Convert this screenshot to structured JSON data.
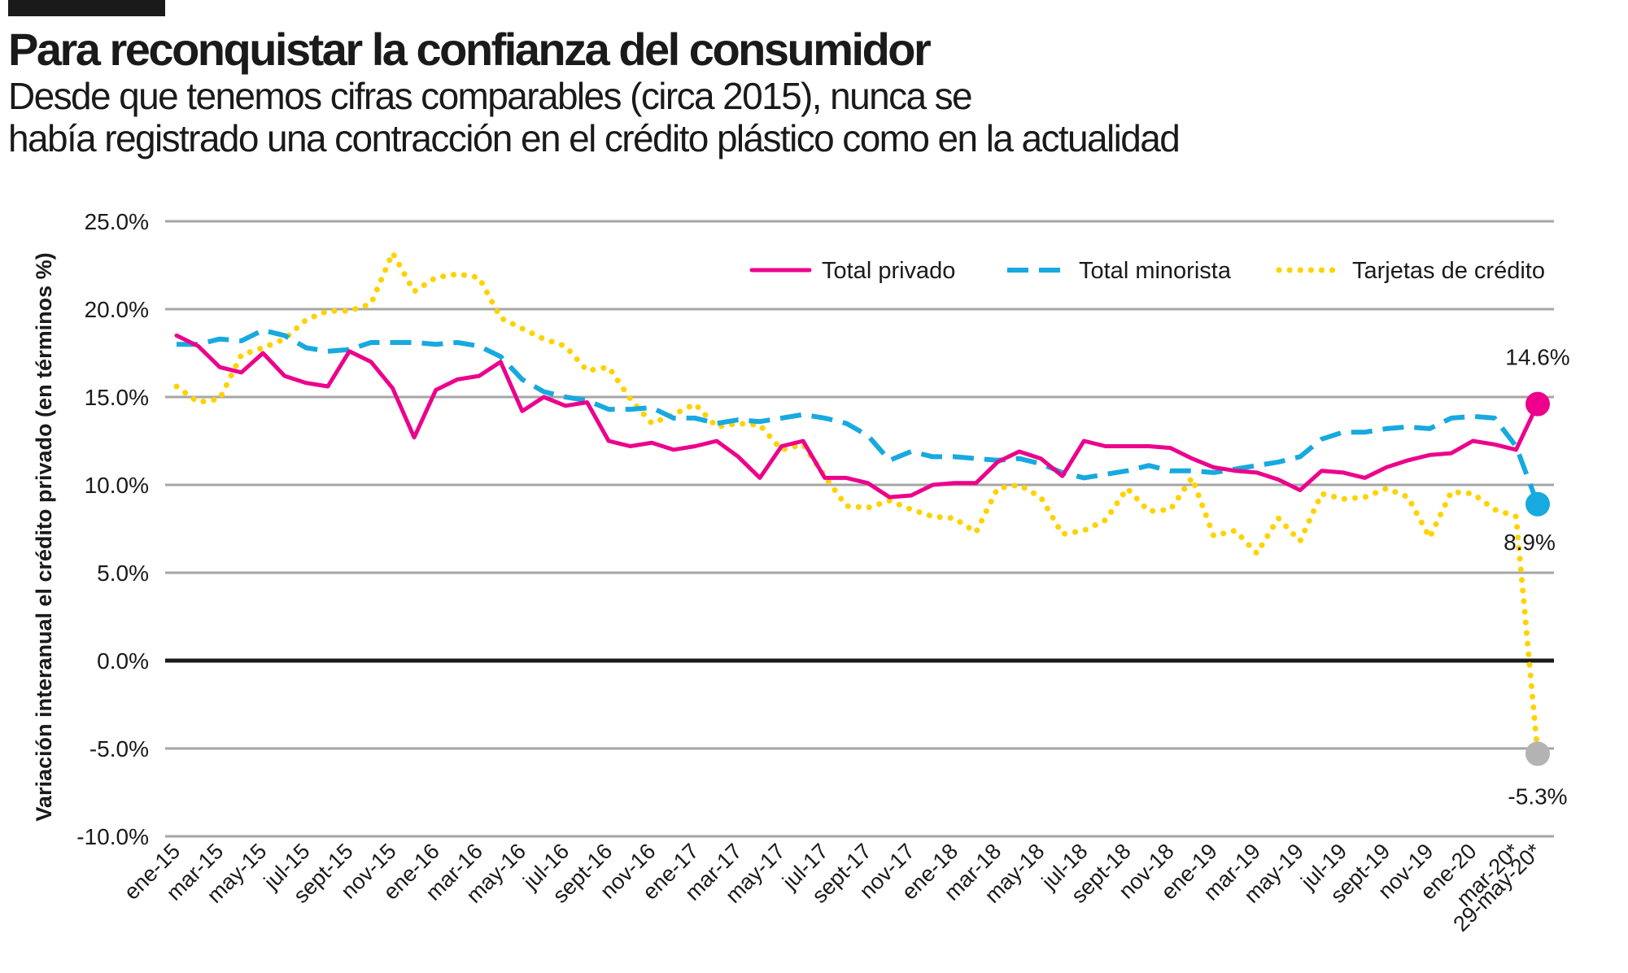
{
  "header": {
    "title": "Para reconquistar la confianza del consumidor",
    "subtitle_line1": "Desde que tenemos cifras comparables (circa 2015), nunca se",
    "subtitle_line2": "había registrado una contracción en el crédito plástico como en la actualidad"
  },
  "colors": {
    "total_privado": "#ec008c",
    "total_minorista": "#17a9df",
    "tarjetas": "#ffd200",
    "end_marker_tarjetas": "#b3b3b3",
    "grid": "#a6a6a6",
    "zero_line": "#1a1a1a"
  },
  "chart_data": {
    "type": "line",
    "ylabel": "Variación interanual el crédito privado (en términos %)",
    "xlabel": "",
    "ylim": [
      -10,
      25
    ],
    "yticks": [
      25,
      20,
      15,
      10,
      5,
      0,
      -5,
      -10
    ],
    "ytick_labels": [
      "25.0%",
      "20.0%",
      "15.0%",
      "10.0%",
      "5.0%",
      "0.0%",
      "-5.0%",
      "-10.0%"
    ],
    "grid": true,
    "legend_position": "top-right",
    "tick_labels": [
      "ene-15",
      "mar-15",
      "may-15",
      "jul-15",
      "sept-15",
      "nov-15",
      "ene-16",
      "mar-16",
      "may-16",
      "jul-16",
      "sept-16",
      "nov-16",
      "ene-17",
      "mar-17",
      "may-17",
      "jul-17",
      "sept-17",
      "nov-17",
      "ene-18",
      "mar-18",
      "may-18",
      "jul-18",
      "sept-18",
      "nov-18",
      "ene-19",
      "mar-19",
      "may-19",
      "jul-19",
      "sept-19",
      "nov-19",
      "ene-20",
      "mar-20*",
      "29-may-20*"
    ],
    "x_count": 64,
    "series": [
      {
        "name": "Total privado",
        "style": "solid",
        "values": [
          18.5,
          17.9,
          16.7,
          16.4,
          17.5,
          16.2,
          15.8,
          15.6,
          17.6,
          17.0,
          15.5,
          12.7,
          15.4,
          16.0,
          16.2,
          17.0,
          14.2,
          15.0,
          14.5,
          14.7,
          12.5,
          12.2,
          12.4,
          12.0,
          12.2,
          12.5,
          11.6,
          10.4,
          12.2,
          12.5,
          10.4,
          10.4,
          10.1,
          9.3,
          9.4,
          10.0,
          10.1,
          10.1,
          11.3,
          11.9,
          11.5,
          10.5,
          12.5,
          12.2,
          12.2,
          12.2,
          12.1,
          11.5,
          11.0,
          10.8,
          10.7,
          10.3,
          9.7,
          10.8,
          10.7,
          10.4,
          11.0,
          11.4,
          11.7,
          11.8,
          12.5,
          12.3,
          12.0,
          14.6
        ]
      },
      {
        "name": "Total minorista",
        "style": "dashed",
        "values": [
          18.0,
          18.0,
          18.3,
          18.2,
          18.8,
          18.5,
          17.8,
          17.6,
          17.7,
          18.1,
          18.1,
          18.1,
          18.0,
          18.1,
          17.9,
          17.3,
          16.0,
          15.3,
          15.0,
          14.8,
          14.3,
          14.3,
          14.4,
          13.8,
          13.8,
          13.5,
          13.7,
          13.6,
          13.8,
          14.0,
          13.8,
          13.5,
          12.8,
          11.4,
          11.9,
          11.6,
          11.6,
          11.5,
          11.4,
          11.5,
          11.2,
          10.7,
          10.4,
          10.6,
          10.8,
          11.1,
          10.8,
          10.8,
          10.7,
          10.9,
          11.1,
          11.3,
          11.6,
          12.6,
          13.0,
          13.0,
          13.2,
          13.3,
          13.2,
          13.8,
          13.9,
          13.8,
          12.2,
          8.9
        ]
      },
      {
        "name": "Tarjetas de crédito",
        "style": "dotted",
        "values": [
          15.6,
          14.7,
          14.9,
          17.4,
          17.8,
          18.3,
          19.4,
          19.9,
          19.9,
          20.3,
          23.2,
          21.0,
          21.8,
          22.0,
          21.8,
          19.5,
          18.9,
          18.3,
          17.9,
          16.5,
          16.7,
          14.9,
          13.5,
          14.0,
          14.6,
          13.3,
          13.5,
          13.4,
          12.0,
          12.3,
          10.5,
          8.8,
          8.7,
          9.1,
          8.6,
          8.2,
          8.1,
          7.3,
          9.8,
          10.0,
          9.3,
          7.2,
          7.4,
          8.0,
          9.8,
          8.5,
          8.6,
          10.4,
          7.1,
          7.4,
          6.1,
          8.1,
          6.8,
          9.5,
          9.2,
          9.3,
          9.8,
          9.3,
          7.0,
          9.6,
          9.5,
          8.6,
          8.2,
          -5.3
        ]
      }
    ],
    "end_labels": [
      {
        "series": "Total privado",
        "text": "14.6%"
      },
      {
        "series": "Total minorista",
        "text": "8.9%"
      },
      {
        "series": "Tarjetas de crédito",
        "text": "-5.3%"
      }
    ]
  }
}
